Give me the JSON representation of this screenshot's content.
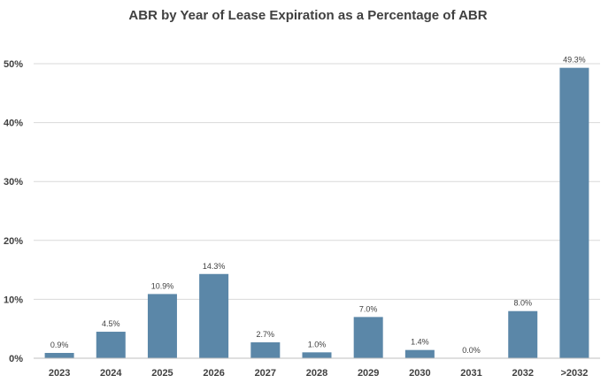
{
  "chart_data": {
    "type": "bar",
    "title": "ABR by Year of Lease Expiration as a Percentage of ABR",
    "xlabel": "",
    "ylabel": "",
    "categories": [
      "2023",
      "2024",
      "2025",
      "2026",
      "2027",
      "2028",
      "2029",
      "2030",
      "2031",
      "2032",
      ">2032"
    ],
    "values": [
      0.9,
      4.5,
      10.9,
      14.3,
      2.7,
      1.0,
      7.0,
      1.4,
      0.0,
      8.0,
      49.3
    ],
    "data_labels": [
      "0.9%",
      "4.5%",
      "10.9%",
      "14.3%",
      "2.7%",
      "1.0%",
      "7.0%",
      "1.4%",
      "0.0%",
      "8.0%",
      "49.3%"
    ],
    "ylim": [
      0,
      50
    ],
    "yticks": [
      0,
      10,
      20,
      30,
      40,
      50
    ],
    "ytick_labels": [
      "0%",
      "10%",
      "20%",
      "30%",
      "40%",
      "50%"
    ],
    "grid": true,
    "legend": "none",
    "bar_color": "#5b87a8"
  }
}
